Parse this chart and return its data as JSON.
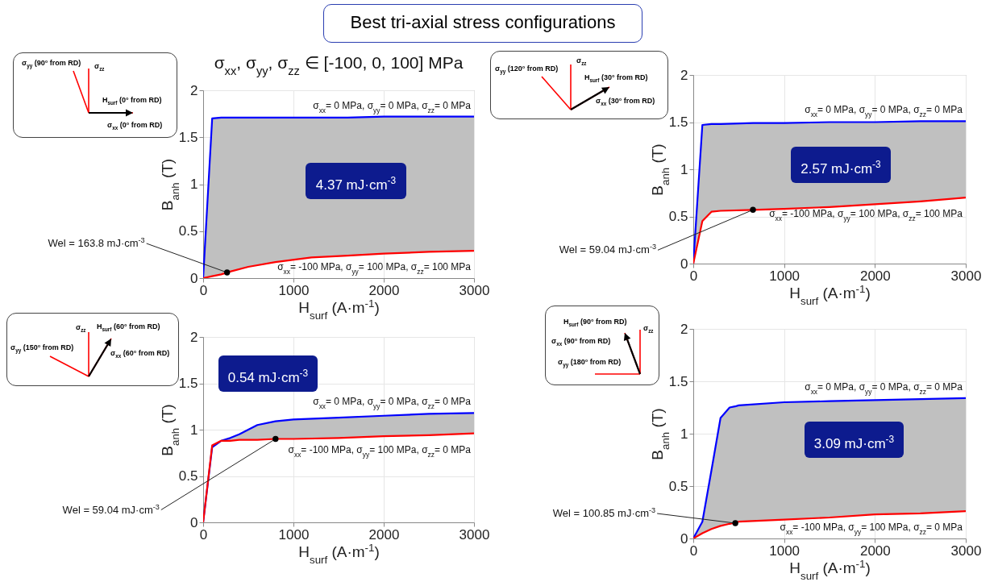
{
  "chart_data": [
    {
      "type": "line",
      "title": "Best tri-axial stress configurations",
      "subtitle": "σ$_{xx}$, σ$_{yy}$, σ$_{zz}$ ∈ [-100, 0, 100] MPa",
      "xlabel": "H$_{surf}$ (A·m$^{-1}$)",
      "ylabel": "B$_{anh}$ (T)",
      "xlim": [
        0,
        3000
      ],
      "ylim": [
        0,
        2
      ],
      "xticks": [
        0,
        1000,
        2000,
        3000
      ],
      "yticks": [
        0,
        0.5,
        1,
        1.5,
        2
      ],
      "grid": true,
      "x": [
        0,
        100,
        200,
        300,
        500,
        800,
        1200,
        1600,
        2000,
        2500,
        3000
      ],
      "series": [
        {
          "name": "σ$_{xx}$= 0 MPa, σ$_{yy}$= 0 MPa, σ$_{zz}$= 0 MPa",
          "color": "#0000ff",
          "values": [
            0,
            1.7,
            1.71,
            1.71,
            1.71,
            1.71,
            1.71,
            1.71,
            1.72,
            1.72,
            1.72
          ],
          "lower": [
            0,
            0.02,
            0.04,
            0.07,
            0.12,
            0.17,
            0.22,
            0.24,
            0.26,
            0.28,
            0.29
          ],
          "upper": [
            0,
            1.7,
            1.71,
            1.71,
            1.71,
            1.71,
            1.71,
            1.71,
            1.72,
            1.72,
            1.72
          ]
        },
        {
          "name": "σ$_{xx}$= -100 MPa, σ$_{yy}$= 100 MPa, σ$_{zz}$= 100 MPa",
          "color": "#ff0000",
          "values": [
            0,
            0.02,
            0.04,
            0.07,
            0.12,
            0.17,
            0.22,
            0.24,
            0.26,
            0.28,
            0.29
          ]
        }
      ],
      "annotations": [
        "4.37 mJ·cm$^{-3}$",
        {
          "text": "Wel = 163.8 mJ·cm$^{-3}$",
          "x": 265,
          "y": 0.06
        },
        "σ$_{yy}$ (90° from RD)",
        "σ$_{zz}$",
        "H$_{surf}$ (0° from RD)",
        "σ$_{xx}$ (0° from RD)"
      ]
    },
    {
      "type": "line",
      "xlabel": "H$_{surf}$ (A·m$^{-1}$)",
      "ylabel": "B$_{anh}$ (T)",
      "xlim": [
        0,
        3000
      ],
      "ylim": [
        0,
        2
      ],
      "xticks": [
        0,
        1000,
        2000,
        3000
      ],
      "yticks": [
        0,
        0.5,
        1,
        1.5,
        2
      ],
      "grid": true,
      "x": [
        0,
        100,
        200,
        300,
        660,
        1000,
        1500,
        2000,
        2500,
        3000
      ],
      "series": [
        {
          "name": "σ$_{xx}$= 0 MPa, σ$_{yy}$= 0 MPa, σ$_{zz}$= 0 MPa",
          "color": "#0000ff",
          "values": [
            0,
            1.47,
            1.48,
            1.48,
            1.49,
            1.49,
            1.5,
            1.5,
            1.51,
            1.51
          ],
          "lower": [
            0,
            0.45,
            0.55,
            0.56,
            0.57,
            0.58,
            0.6,
            0.63,
            0.66,
            0.7
          ],
          "upper": [
            0,
            1.47,
            1.48,
            1.48,
            1.49,
            1.49,
            1.5,
            1.5,
            1.51,
            1.51
          ]
        },
        {
          "name": "σ$_{xx}$= -100 MPa, σ$_{yy}$= 100 MPa, σ$_{zz}$= 100 MPa",
          "color": "#ff0000",
          "values": [
            0,
            0.45,
            0.55,
            0.56,
            0.57,
            0.58,
            0.6,
            0.63,
            0.66,
            0.7
          ]
        }
      ],
      "annotations": [
        "2.57 mJ·cm$^{-3}$",
        {
          "text": "Wel = 59.04 mJ·cm$^{-3}$",
          "x": 657,
          "y": 0.57
        },
        "σ$_{yy}$ (120° from RD)",
        "σ$_{zz}$",
        "H$_{surf}$ (30° from RD)",
        "σ$_{xx}$ (30° from RD)"
      ]
    },
    {
      "type": "line",
      "xlabel": "H$_{surf}$ (A·m$^{-1}$)",
      "ylabel": "B$_{anh}$ (T)",
      "xlim": [
        0,
        3000
      ],
      "ylim": [
        0,
        2
      ],
      "xticks": [
        0,
        1000,
        2000,
        3000
      ],
      "yticks": [
        0,
        0.5,
        1,
        1.5,
        2
      ],
      "grid": true,
      "x": [
        0,
        100,
        200,
        300,
        400,
        500,
        600,
        800,
        1000,
        1500,
        2000,
        2500,
        3000
      ],
      "series": [
        {
          "name": "σ$_{xx}$= 0 MPa, σ$_{yy}$= 0 MPa, σ$_{zz}$= 0 MPa",
          "color": "#0000ff",
          "values": [
            0,
            0.81,
            0.88,
            0.91,
            0.95,
            1.0,
            1.05,
            1.09,
            1.11,
            1.13,
            1.15,
            1.17,
            1.18
          ],
          "lower": [
            0,
            0.83,
            0.88,
            0.88,
            0.89,
            0.89,
            0.89,
            0.9,
            0.9,
            0.91,
            0.93,
            0.94,
            0.96
          ],
          "upper": [
            0,
            0.81,
            0.88,
            0.91,
            0.95,
            1.0,
            1.05,
            1.09,
            1.11,
            1.13,
            1.15,
            1.17,
            1.18
          ]
        },
        {
          "name": "σ$_{xx}$= -100 MPa, σ$_{yy}$= 100 MPa, σ$_{zz}$= 0 MPa",
          "color": "#ff0000",
          "values": [
            0,
            0.83,
            0.88,
            0.88,
            0.89,
            0.89,
            0.89,
            0.9,
            0.9,
            0.91,
            0.93,
            0.94,
            0.96
          ]
        }
      ],
      "annotations": [
        "0.54 mJ·cm$^{-3}$",
        {
          "text": "Wel = 59.04 mJ·cm$^{-3}$",
          "x": 802,
          "y": 0.9
        },
        "σ$_{zz}$",
        "H$_{surf}$ (60° from RD)",
        "σ$_{yy}$ (150° from RD)",
        "σ$_{xx}$ (60° from RD)"
      ]
    },
    {
      "type": "line",
      "xlabel": "H$_{surf}$ (A·m$^{-1}$)",
      "ylabel": "B$_{anh}$ (T)",
      "xlim": [
        0,
        3000
      ],
      "ylim": [
        0,
        2
      ],
      "xticks": [
        0,
        1000,
        2000,
        3000
      ],
      "yticks": [
        0,
        0.5,
        1,
        1.5,
        2
      ],
      "grid": true,
      "x": [
        0,
        100,
        200,
        300,
        400,
        460,
        500,
        1000,
        1500,
        2000,
        2500,
        3000
      ],
      "series": [
        {
          "name": "σ$_{xx}$= 0 MPa, σ$_{yy}$= 0 MPa, σ$_{zz}$= 0 MPa",
          "color": "#0000ff",
          "values": [
            0,
            0.16,
            0.65,
            1.15,
            1.25,
            1.26,
            1.27,
            1.3,
            1.31,
            1.32,
            1.33,
            1.34
          ],
          "lower": [
            0,
            0.05,
            0.09,
            0.12,
            0.14,
            0.15,
            0.16,
            0.18,
            0.2,
            0.23,
            0.24,
            0.26
          ],
          "upper": [
            0,
            0.16,
            0.65,
            1.15,
            1.25,
            1.26,
            1.27,
            1.3,
            1.31,
            1.32,
            1.33,
            1.34
          ]
        },
        {
          "name": "σ$_{xx}$= -100 MPa, σ$_{yy}$= 100 MPa, σ$_{zz}$= 0 MPa",
          "color": "#ff0000",
          "values": [
            0,
            0.05,
            0.09,
            0.12,
            0.14,
            0.15,
            0.16,
            0.18,
            0.2,
            0.23,
            0.24,
            0.26
          ]
        }
      ],
      "annotations": [
        "3.09 mJ·cm$^{-3}$",
        {
          "text": "Wel = 100.85 mJ·cm$^{-3}$",
          "x": 463,
          "y": 0.146
        },
        "H$_{surf}$ (90° from RD)",
        "σ$_{zz}$",
        "σ$_{xx}$ (90° from RD)",
        "σ$_{yy}$ (180° from RD)"
      ]
    }
  ]
}
